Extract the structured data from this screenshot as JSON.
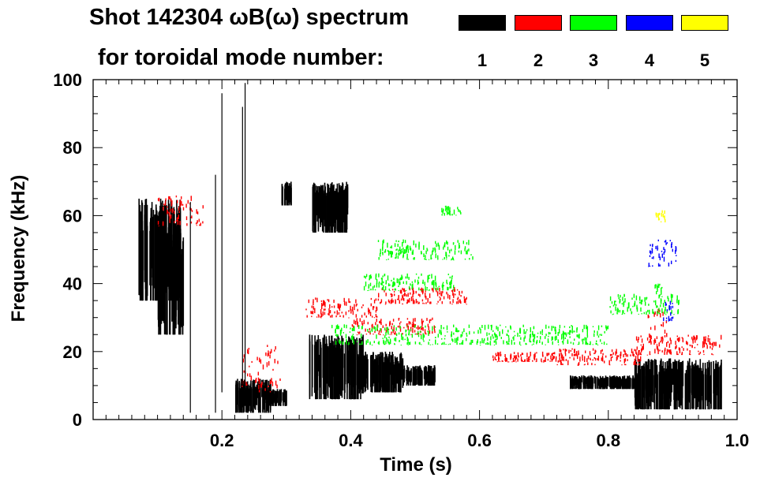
{
  "title_line1": "Shot 142304 ωB(ω) spectrum",
  "title_line2": "for toroidal mode number:",
  "legend": [
    {
      "label": "1",
      "color": "#000000"
    },
    {
      "label": "2",
      "color": "#ff0000"
    },
    {
      "label": "3",
      "color": "#00ff00"
    },
    {
      "label": "4",
      "color": "#0000ff"
    },
    {
      "label": "5",
      "color": "#ffff00"
    }
  ],
  "chart_data": {
    "type": "heatmap",
    "title": "Shot 142304 ωB(ω) spectrum",
    "xlabel": "Time (s)",
    "ylabel": "Frequency (kHz)",
    "xlim": [
      0.0,
      1.0
    ],
    "ylim": [
      0,
      100
    ],
    "xticks": [
      {
        "value": 0.2,
        "label": "0.2"
      },
      {
        "value": 0.4,
        "label": "0.4"
      },
      {
        "value": 0.6,
        "label": "0.6"
      },
      {
        "value": 0.8,
        "label": "0.8"
      },
      {
        "value": 1.0,
        "label": "1.0"
      }
    ],
    "yticks": [
      {
        "value": 0,
        "label": "0"
      },
      {
        "value": 20,
        "label": "20"
      },
      {
        "value": 40,
        "label": "40"
      },
      {
        "value": 60,
        "label": "60"
      },
      {
        "value": 80,
        "label": "80"
      },
      {
        "value": 100,
        "label": "100"
      }
    ],
    "series": [
      {
        "name": "n=1",
        "color": "#000000",
        "regions": [
          {
            "t0": 0.07,
            "t1": 0.135,
            "f0": 35,
            "f1": 65
          },
          {
            "t0": 0.1,
            "t1": 0.14,
            "f0": 25,
            "f1": 55
          },
          {
            "t0": 0.22,
            "t1": 0.275,
            "f0": 2,
            "f1": 12
          },
          {
            "t0": 0.275,
            "t1": 0.3,
            "f0": 4,
            "f1": 9
          },
          {
            "t0": 0.292,
            "t1": 0.307,
            "f0": 63,
            "f1": 70
          },
          {
            "t0": 0.335,
            "t1": 0.42,
            "f0": 6,
            "f1": 25
          },
          {
            "t0": 0.42,
            "t1": 0.48,
            "f0": 8,
            "f1": 20
          },
          {
            "t0": 0.48,
            "t1": 0.53,
            "f0": 10,
            "f1": 16
          },
          {
            "t0": 0.34,
            "t1": 0.395,
            "f0": 55,
            "f1": 70
          },
          {
            "t0": 0.84,
            "t1": 0.975,
            "f0": 3,
            "f1": 18
          },
          {
            "t0": 0.74,
            "t1": 0.84,
            "f0": 9,
            "f1": 13
          }
        ]
      },
      {
        "name": "n=2",
        "color": "#ff0000",
        "regions": [
          {
            "t0": 0.1,
            "t1": 0.17,
            "f0": 57,
            "f1": 66
          },
          {
            "t0": 0.23,
            "t1": 0.29,
            "f0": 8,
            "f1": 22
          },
          {
            "t0": 0.33,
            "t1": 0.44,
            "f0": 30,
            "f1": 36
          },
          {
            "t0": 0.44,
            "t1": 0.58,
            "f0": 34,
            "f1": 39
          },
          {
            "t0": 0.4,
            "t1": 0.53,
            "f0": 25,
            "f1": 30
          },
          {
            "t0": 0.62,
            "t1": 0.72,
            "f0": 17,
            "f1": 20
          },
          {
            "t0": 0.72,
            "t1": 0.85,
            "f0": 16,
            "f1": 21
          },
          {
            "t0": 0.84,
            "t1": 0.975,
            "f0": 19,
            "f1": 25
          },
          {
            "t0": 0.86,
            "t1": 0.89,
            "f0": 22,
            "f1": 33
          }
        ]
      },
      {
        "name": "n=3",
        "color": "#00ff00",
        "regions": [
          {
            "t0": 0.44,
            "t1": 0.59,
            "f0": 47,
            "f1": 53
          },
          {
            "t0": 0.42,
            "t1": 0.56,
            "f0": 38,
            "f1": 43
          },
          {
            "t0": 0.37,
            "t1": 0.8,
            "f0": 22,
            "f1": 28
          },
          {
            "t0": 0.8,
            "t1": 0.91,
            "f0": 31,
            "f1": 37
          },
          {
            "t0": 0.87,
            "t1": 0.885,
            "f0": 36,
            "f1": 40
          },
          {
            "t0": 0.54,
            "t1": 0.57,
            "f0": 60,
            "f1": 63
          }
        ]
      },
      {
        "name": "n=4",
        "color": "#0000ff",
        "regions": [
          {
            "t0": 0.86,
            "t1": 0.905,
            "f0": 45,
            "f1": 53
          },
          {
            "t0": 0.88,
            "t1": 0.9,
            "f0": 29,
            "f1": 35
          }
        ]
      },
      {
        "name": "n=5",
        "color": "#ffff00",
        "regions": [
          {
            "t0": 0.873,
            "t1": 0.888,
            "f0": 58,
            "f1": 63
          }
        ]
      }
    ]
  }
}
